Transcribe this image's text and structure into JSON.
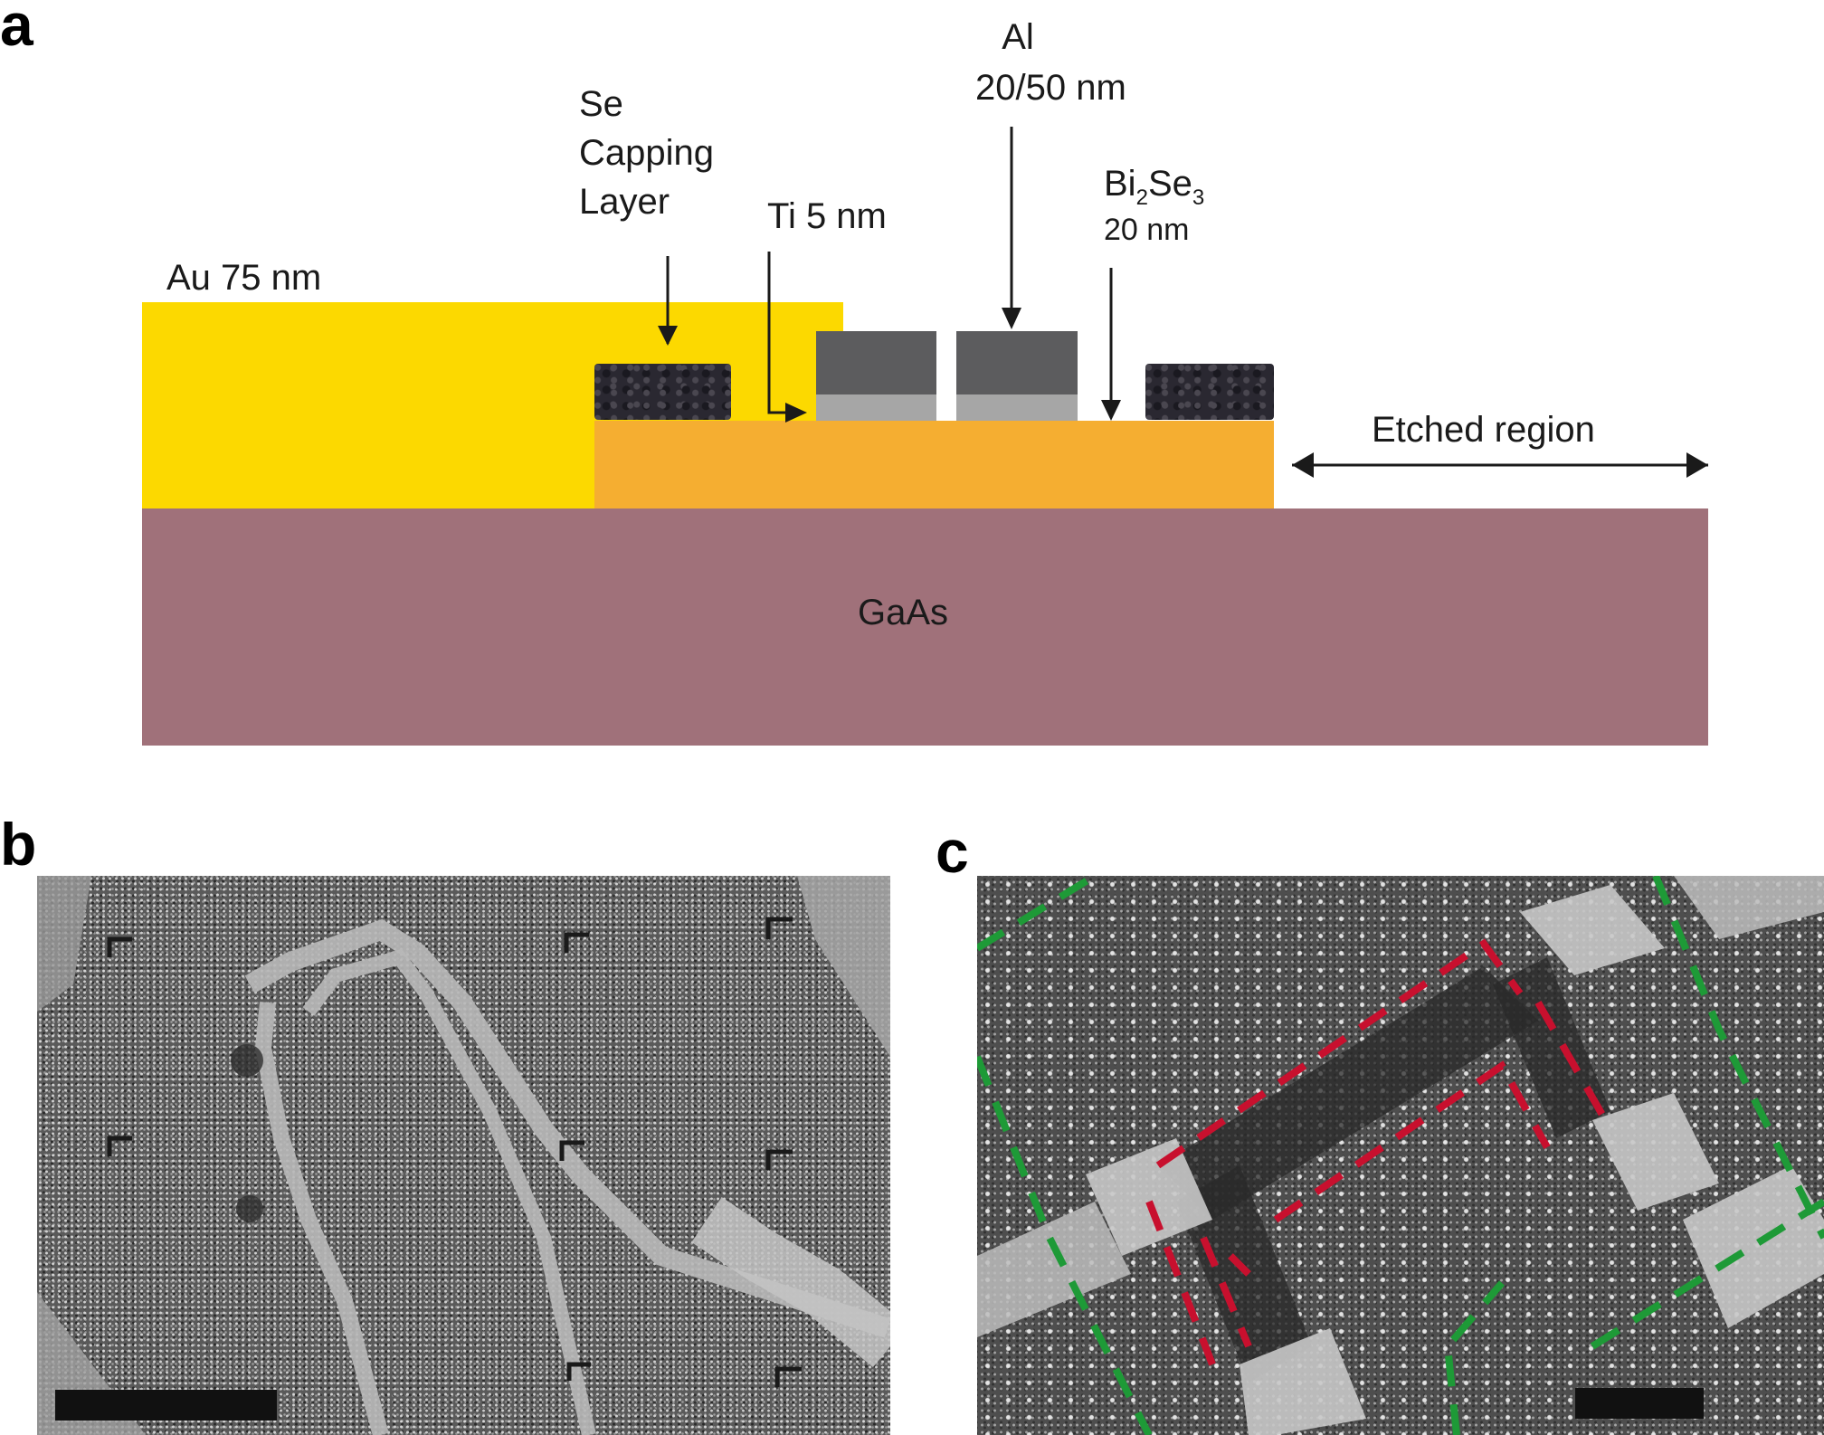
{
  "panels": {
    "a": {
      "letter": "a",
      "labels": {
        "se_capping": [
          "Se",
          "Capping",
          "Layer"
        ],
        "al_title": "Al",
        "al_thickness": "20/50 nm",
        "ti": "Ti 5 nm",
        "bi2se3_prefix": "Bi",
        "bi2se3_sub1": "2",
        "bi2se3_mid": "Se",
        "bi2se3_sub2": "3",
        "bi2se3_thickness": "20 nm",
        "au": "Au 75 nm",
        "etched": "Etched region",
        "substrate": "GaAs"
      }
    },
    "b": {
      "letter": "b",
      "image": "SEM micrograph of Bi2Se3 device with contacts and scale bar"
    },
    "c": {
      "letter": "c",
      "image": "SEM micrograph of junction with red and green dashed outlines and scale bar"
    }
  },
  "colors": {
    "au": "#FCD900",
    "bi2se3": "#F5AE31",
    "gaas": "#A0717A",
    "al": "#5C5C5E",
    "ti": "#A6A6A6",
    "se_cap": "#2A2831",
    "red_dash": "#C8102E",
    "green_dash": "#1E9A37"
  }
}
